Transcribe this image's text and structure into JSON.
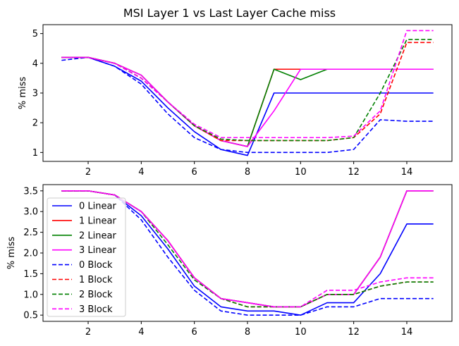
{
  "title": "MSI Layer 1 vs Last Layer Cache miss",
  "chart_data": [
    {
      "type": "line",
      "ylabel": "% miss",
      "xlabel": "",
      "xlim": [
        0.3,
        15.7
      ],
      "ylim": [
        0.7,
        5.3
      ],
      "xticks": [
        2,
        4,
        6,
        8,
        10,
        12,
        14
      ],
      "yticks": [
        1,
        2,
        3,
        4,
        5
      ],
      "grid": false,
      "x": [
        1,
        2,
        3,
        4,
        5,
        6,
        7,
        8,
        9,
        10,
        11,
        12,
        13,
        14,
        15
      ],
      "series": [
        {
          "name": "0 Linear",
          "color": "#0000ff",
          "dash": "solid",
          "values": [
            4.2,
            4.2,
            3.9,
            3.4,
            2.5,
            1.7,
            1.1,
            0.9,
            3.0,
            3.0,
            3.0,
            3.0,
            3.0,
            3.0,
            3.0
          ]
        },
        {
          "name": "1 Linear",
          "color": "#ff0000",
          "dash": "solid",
          "values": [
            4.2,
            4.2,
            4.0,
            3.6,
            2.7,
            1.9,
            1.4,
            1.2,
            3.8,
            3.8,
            3.8,
            3.8,
            3.8,
            3.8,
            3.8
          ]
        },
        {
          "name": "2 Linear",
          "color": "#008000",
          "dash": "solid",
          "values": [
            4.2,
            4.2,
            4.0,
            3.6,
            2.7,
            1.9,
            1.4,
            1.2,
            3.8,
            3.45,
            3.8,
            3.8,
            3.8,
            3.8,
            3.8
          ]
        },
        {
          "name": "3 Linear",
          "color": "#ff00ff",
          "dash": "solid",
          "values": [
            4.2,
            4.2,
            4.0,
            3.6,
            2.7,
            1.9,
            1.4,
            1.2,
            2.4,
            3.8,
            3.8,
            3.8,
            3.8,
            3.8,
            3.8
          ]
        },
        {
          "name": "0 Block",
          "color": "#0000ff",
          "dash": "dashed",
          "values": [
            4.1,
            4.2,
            3.9,
            3.3,
            2.3,
            1.5,
            1.1,
            1.0,
            1.0,
            1.0,
            1.0,
            1.1,
            2.1,
            2.05,
            2.05
          ]
        },
        {
          "name": "1 Block",
          "color": "#ff0000",
          "dash": "dashed",
          "values": [
            4.2,
            4.2,
            4.0,
            3.5,
            2.7,
            1.9,
            1.4,
            1.4,
            1.4,
            1.4,
            1.4,
            1.5,
            2.3,
            4.7,
            4.7
          ]
        },
        {
          "name": "2 Block",
          "color": "#008000",
          "dash": "dashed",
          "values": [
            4.2,
            4.2,
            4.0,
            3.5,
            2.7,
            1.9,
            1.45,
            1.4,
            1.4,
            1.4,
            1.4,
            1.5,
            3.0,
            4.8,
            4.8
          ]
        },
        {
          "name": "3 Block",
          "color": "#ff00ff",
          "dash": "dashed",
          "values": [
            4.2,
            4.2,
            4.0,
            3.5,
            2.7,
            1.95,
            1.5,
            1.5,
            1.5,
            1.5,
            1.5,
            1.55,
            2.4,
            5.1,
            5.1
          ]
        }
      ]
    },
    {
      "type": "line",
      "ylabel": "% miss",
      "xlabel": "",
      "xlim": [
        0.3,
        15.7
      ],
      "ylim": [
        0.35,
        3.65
      ],
      "xticks": [
        2,
        4,
        6,
        8,
        10,
        12,
        14
      ],
      "yticks": [
        0.5,
        1.0,
        1.5,
        2.0,
        2.5,
        3.0,
        3.5
      ],
      "ytick_labels": [
        "0.5",
        "1.0",
        "1.5",
        "2.0",
        "2.5",
        "3.0",
        "3.5"
      ],
      "grid": false,
      "legend_position": "left",
      "x": [
        1,
        2,
        3,
        4,
        5,
        6,
        7,
        8,
        9,
        10,
        11,
        12,
        13,
        14,
        15
      ],
      "series": [
        {
          "name": "0 Linear",
          "color": "#0000ff",
          "dash": "solid",
          "values": [
            3.5,
            3.5,
            3.4,
            2.9,
            2.1,
            1.2,
            0.7,
            0.6,
            0.6,
            0.5,
            0.8,
            0.8,
            1.5,
            2.7,
            2.7
          ]
        },
        {
          "name": "1 Linear",
          "color": "#ff0000",
          "dash": "solid",
          "values": [
            3.5,
            3.5,
            3.4,
            3.0,
            2.3,
            1.4,
            0.9,
            0.8,
            0.7,
            0.7,
            1.0,
            1.0,
            1.9,
            3.5,
            3.5
          ]
        },
        {
          "name": "2 Linear",
          "color": "#008000",
          "dash": "solid",
          "values": [
            3.5,
            3.5,
            3.4,
            3.0,
            2.3,
            1.4,
            0.9,
            0.8,
            0.7,
            0.7,
            1.0,
            1.0,
            1.9,
            3.5,
            3.5
          ]
        },
        {
          "name": "3 Linear",
          "color": "#ff00ff",
          "dash": "solid",
          "values": [
            3.5,
            3.5,
            3.4,
            3.0,
            2.3,
            1.4,
            0.9,
            0.8,
            0.7,
            0.7,
            1.0,
            1.0,
            1.9,
            3.5,
            3.5
          ]
        },
        {
          "name": "0 Block",
          "color": "#0000ff",
          "dash": "dashed",
          "values": [
            3.5,
            3.5,
            3.4,
            2.8,
            1.9,
            1.1,
            0.6,
            0.5,
            0.5,
            0.5,
            0.7,
            0.7,
            0.9,
            0.9,
            0.9
          ]
        },
        {
          "name": "1 Block",
          "color": "#ff0000",
          "dash": "dashed",
          "values": [
            3.5,
            3.5,
            3.4,
            3.0,
            2.3,
            1.4,
            0.9,
            0.7,
            0.7,
            0.7,
            1.0,
            1.0,
            1.2,
            1.3,
            1.3
          ]
        },
        {
          "name": "2 Block",
          "color": "#008000",
          "dash": "dashed",
          "values": [
            3.5,
            3.5,
            3.4,
            3.0,
            2.2,
            1.35,
            0.9,
            0.7,
            0.7,
            0.7,
            1.0,
            1.0,
            1.2,
            1.3,
            1.3
          ]
        },
        {
          "name": "3 Block",
          "color": "#ff00ff",
          "dash": "dashed",
          "values": [
            3.5,
            3.5,
            3.4,
            3.0,
            2.3,
            1.4,
            0.9,
            0.8,
            0.7,
            0.7,
            1.1,
            1.1,
            1.3,
            1.4,
            1.4
          ]
        }
      ]
    }
  ]
}
